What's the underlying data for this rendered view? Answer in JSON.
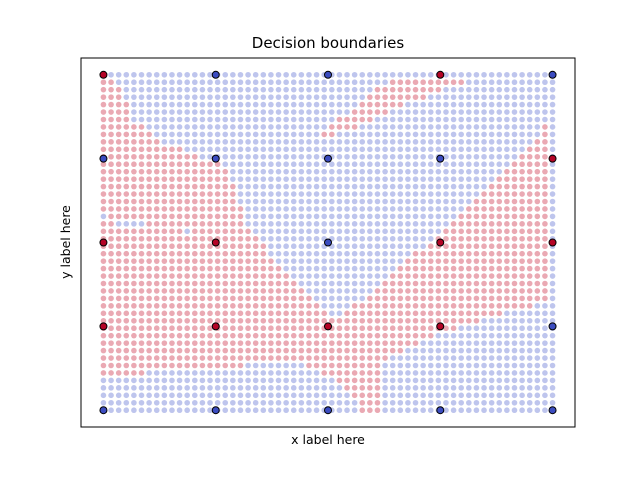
{
  "chart_data": {
    "type": "scatter",
    "title": "Decision boundaries",
    "xlabel": "x label here",
    "ylabel": "y label here",
    "xticks": [],
    "yticks": [],
    "grid": false,
    "legend": "none",
    "colors": {
      "class_0": "#3b4cc0",
      "class_1": "#b40426",
      "grid_class_0": "#b3bbea",
      "grid_class_1": "#e69aa6",
      "training_edge": "#000000"
    },
    "xlim": [
      -0.05,
      1.05
    ],
    "ylim": [
      -0.05,
      1.05
    ],
    "decision_grid": {
      "columns": 60,
      "rows": 46,
      "x_range": [
        0,
        1
      ],
      "y_range": [
        0,
        1
      ]
    },
    "training_points": [
      {
        "x": 0.0,
        "y": 0.0,
        "class": 0
      },
      {
        "x": 0.25,
        "y": 0.0,
        "class": 0
      },
      {
        "x": 0.5,
        "y": 0.0,
        "class": 0
      },
      {
        "x": 0.75,
        "y": 0.0,
        "class": 0
      },
      {
        "x": 1.0,
        "y": 0.0,
        "class": 0
      },
      {
        "x": 0.0,
        "y": 0.25,
        "class": 1
      },
      {
        "x": 0.25,
        "y": 0.25,
        "class": 1
      },
      {
        "x": 0.5,
        "y": 0.25,
        "class": 1
      },
      {
        "x": 0.75,
        "y": 0.25,
        "class": 1
      },
      {
        "x": 1.0,
        "y": 0.25,
        "class": 0
      },
      {
        "x": 0.0,
        "y": 0.5,
        "class": 1
      },
      {
        "x": 0.25,
        "y": 0.5,
        "class": 1
      },
      {
        "x": 0.5,
        "y": 0.5,
        "class": 0
      },
      {
        "x": 0.75,
        "y": 0.5,
        "class": 1
      },
      {
        "x": 1.0,
        "y": 0.5,
        "class": 1
      },
      {
        "x": 0.0,
        "y": 0.75,
        "class": 0
      },
      {
        "x": 0.25,
        "y": 0.75,
        "class": 0
      },
      {
        "x": 0.5,
        "y": 0.75,
        "class": 0
      },
      {
        "x": 0.75,
        "y": 0.75,
        "class": 0
      },
      {
        "x": 1.0,
        "y": 0.75,
        "class": 1
      },
      {
        "x": 0.0,
        "y": 1.0,
        "class": 1
      },
      {
        "x": 0.25,
        "y": 1.0,
        "class": 0
      },
      {
        "x": 0.5,
        "y": 1.0,
        "class": 0
      },
      {
        "x": 0.75,
        "y": 1.0,
        "class": 1
      },
      {
        "x": 1.0,
        "y": 1.0,
        "class": 0
      }
    ],
    "class_1_regions": [
      [
        [
          0.0,
          1.0
        ],
        [
          0.02,
          1.0
        ],
        [
          0.07,
          0.86
        ],
        [
          0.13,
          0.8
        ],
        [
          0.28,
          0.72
        ],
        [
          0.32,
          0.55
        ],
        [
          0.4,
          0.42
        ],
        [
          0.52,
          0.27
        ],
        [
          0.68,
          0.45
        ],
        [
          0.82,
          0.62
        ],
        [
          0.97,
          0.82
        ],
        [
          1.0,
          0.91
        ],
        [
          1.0,
          0.33
        ],
        [
          0.94,
          0.3
        ],
        [
          0.86,
          0.28
        ],
        [
          0.74,
          0.22
        ],
        [
          0.62,
          0.15
        ],
        [
          0.62,
          0.0
        ],
        [
          0.57,
          0.0
        ],
        [
          0.55,
          0.06
        ],
        [
          0.5,
          0.1
        ],
        [
          0.42,
          0.15
        ],
        [
          0.38,
          0.15
        ],
        [
          0.3,
          0.13
        ],
        [
          0.25,
          0.12
        ],
        [
          0.2,
          0.12
        ],
        [
          0.08,
          0.11
        ],
        [
          0.0,
          0.11
        ],
        [
          0.0,
          0.56
        ],
        [
          0.2,
          0.53
        ],
        [
          0.0,
          0.58
        ],
        [
          0.0,
          0.88
        ]
      ],
      [
        [
          0.45,
          0.79
        ],
        [
          0.65,
          1.0
        ],
        [
          0.85,
          1.0
        ],
        [
          0.78,
          0.97
        ],
        [
          0.62,
          0.88
        ],
        [
          0.52,
          0.82
        ]
      ]
    ]
  }
}
